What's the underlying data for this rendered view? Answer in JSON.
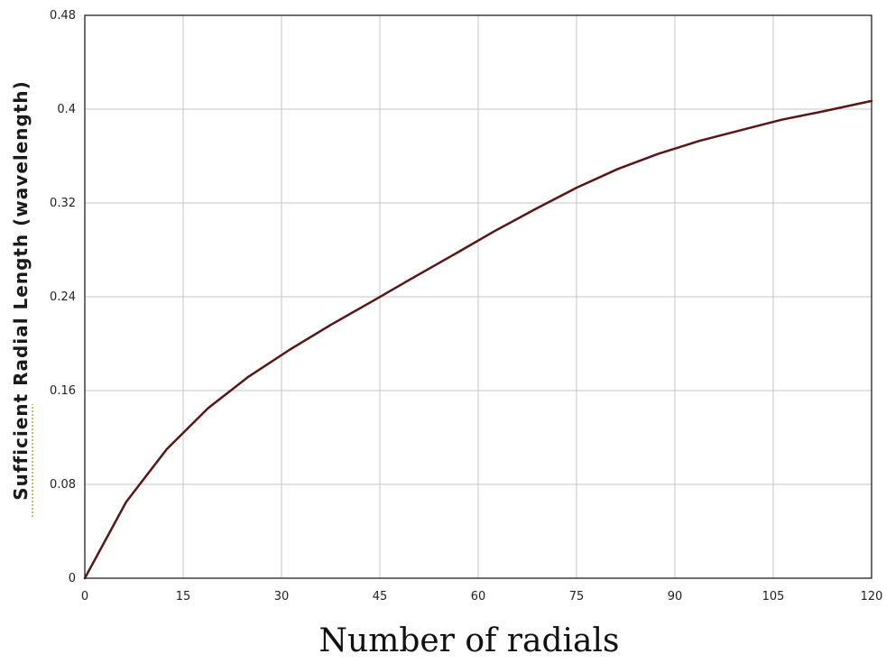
{
  "chart_data": {
    "type": "line",
    "title": "",
    "xlabel": "Number of radials",
    "ylabel": "Sufficient Radial Length (wavelength)",
    "xlim": [
      0,
      120
    ],
    "ylim": [
      0,
      0.48
    ],
    "x_ticks": [
      "0",
      "15",
      "30",
      "45",
      "60",
      "75",
      "90",
      "105",
      "120"
    ],
    "y_ticks": [
      "0",
      "0.08",
      "0.16",
      "0.24",
      "0.32",
      "0.4",
      "0.48"
    ],
    "grid": true,
    "series": [
      {
        "color": "#5a1515",
        "x": [
          0,
          6.3,
          12.5,
          18.8,
          25,
          31.3,
          37.5,
          43.8,
          50,
          56.3,
          62.5,
          68.8,
          75,
          81.3,
          87.5,
          93.8,
          100,
          106.3,
          112.5,
          120
        ],
        "y": [
          0,
          0.065,
          0.11,
          0.145,
          0.172,
          0.195,
          0.216,
          0.236,
          0.256,
          0.276,
          0.296,
          0.315,
          0.333,
          0.349,
          0.362,
          0.373,
          0.382,
          0.391,
          0.398,
          0.407
        ]
      }
    ]
  }
}
